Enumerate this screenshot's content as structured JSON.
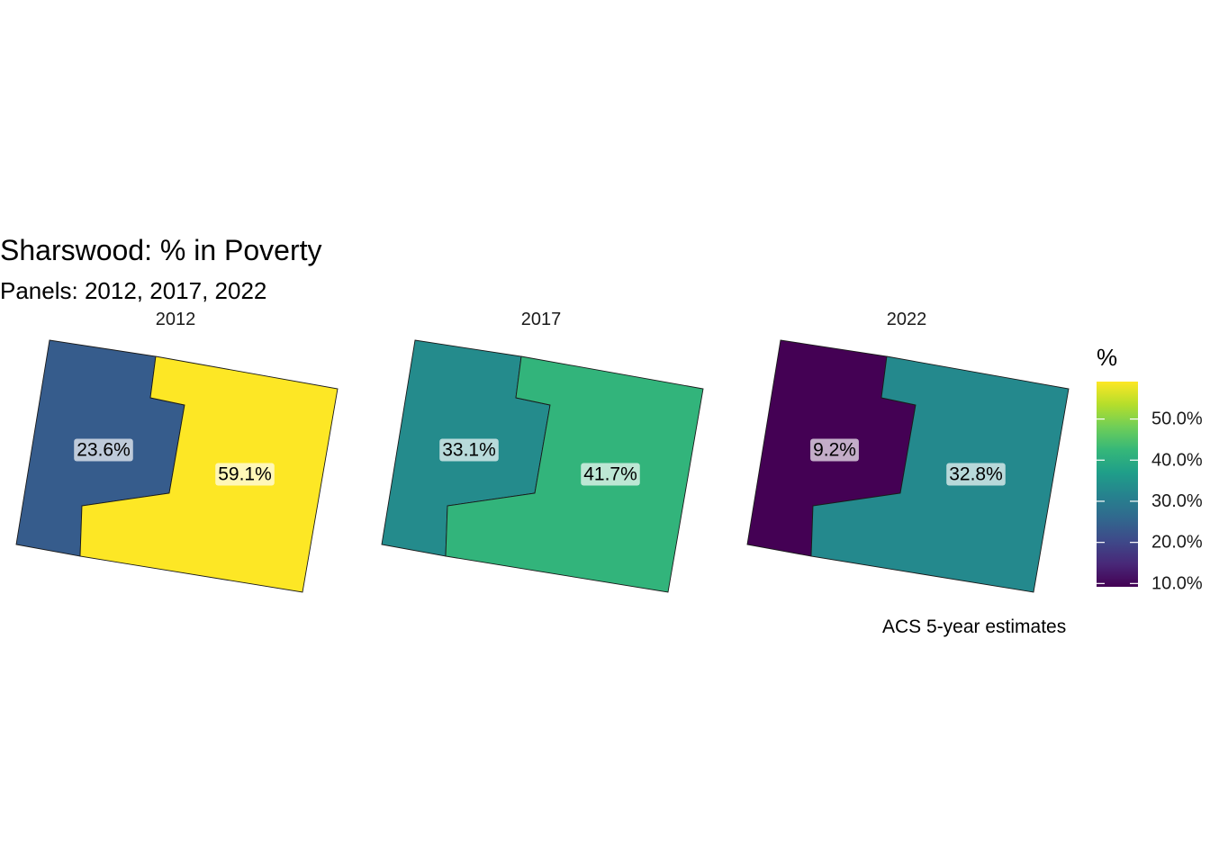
{
  "title": "Sharswood: % in Poverty",
  "subtitle": "Panels: 2012, 2017, 2022",
  "caption": "ACS 5-year estimates",
  "chart_data": {
    "type": "choropleth",
    "title": "Sharswood: % in Poverty",
    "subtitle": "Panels: 2012, 2017, 2022",
    "panels": [
      {
        "year": "2012",
        "regions": [
          {
            "region": "west",
            "value": 23.6,
            "label": "23.6%"
          },
          {
            "region": "east",
            "value": 59.1,
            "label": "59.1%"
          }
        ]
      },
      {
        "year": "2017",
        "regions": [
          {
            "region": "west",
            "value": 33.1,
            "label": "33.1%"
          },
          {
            "region": "east",
            "value": 41.7,
            "label": "41.7%"
          }
        ]
      },
      {
        "year": "2022",
        "regions": [
          {
            "region": "west",
            "value": 9.2,
            "label": "9.2%"
          },
          {
            "region": "east",
            "value": 32.8,
            "label": "32.8%"
          }
        ]
      }
    ],
    "legend": {
      "title": "%",
      "placement": "right",
      "colormap": "viridis",
      "range": [
        9.2,
        59.1
      ],
      "ticks": [
        10,
        20,
        30,
        40,
        50
      ],
      "tick_labels": [
        "10.0%",
        "20.0%",
        "30.0%",
        "40.0%",
        "50.0%"
      ]
    }
  }
}
